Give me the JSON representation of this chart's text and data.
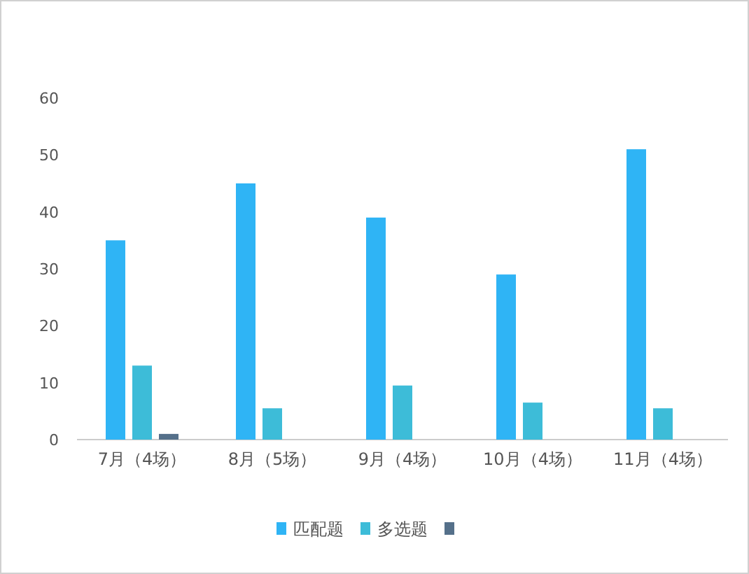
{
  "chart_data": {
    "type": "bar",
    "categories": [
      "7月（4场）",
      "8月（5场）",
      "9月（4场）",
      "10月（4场）",
      "11月（4场）"
    ],
    "series": [
      {
        "name": "匹配题",
        "color": "#2fb4f5",
        "values": [
          35,
          45,
          39,
          29,
          51
        ]
      },
      {
        "name": "多选题",
        "color": "#3dbcd8",
        "values": [
          13,
          5.5,
          9.5,
          6.5,
          5.5
        ]
      },
      {
        "color": "#55708a",
        "values": [
          1,
          null,
          null,
          null,
          null
        ]
      }
    ],
    "ylim": [
      0,
      60
    ],
    "yticks": [
      0,
      10,
      20,
      30,
      40,
      50,
      60
    ],
    "grid": false,
    "legend": "bottom"
  }
}
